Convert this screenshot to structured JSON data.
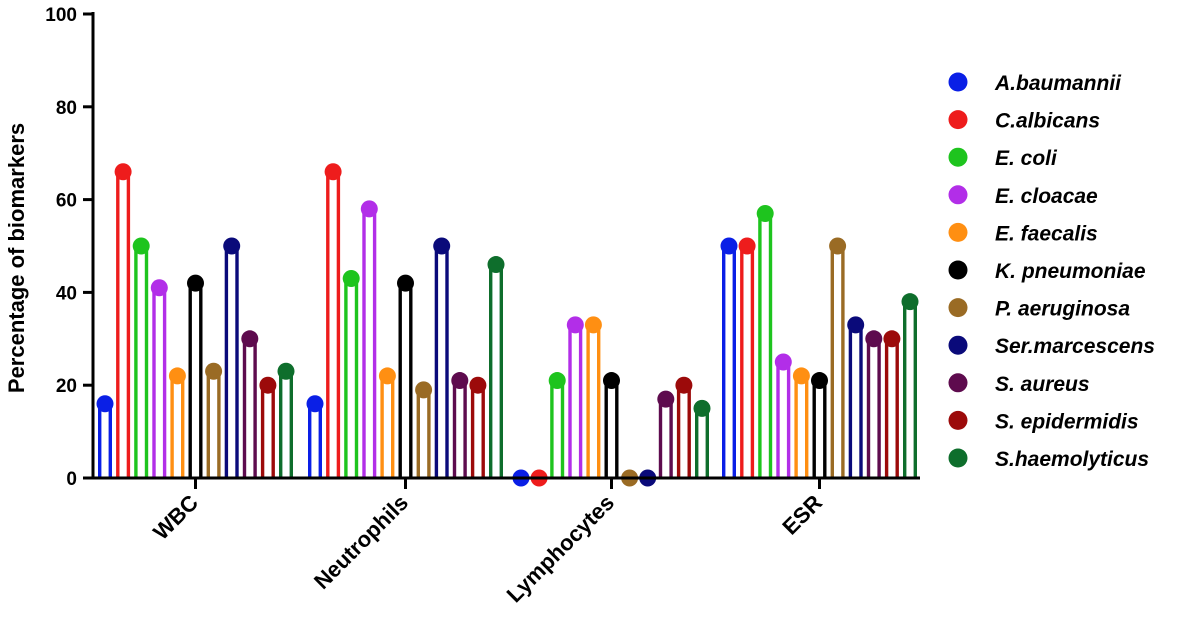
{
  "chart_data": {
    "type": "bar",
    "ylabel": "Percentage of biomarkers",
    "ylim": [
      0,
      100
    ],
    "yticks": [
      0,
      20,
      40,
      60,
      80,
      100
    ],
    "grid": false,
    "legend_position": "right",
    "categories": [
      "WBC",
      "Neutrophils",
      "Lymphocytes",
      "ESR"
    ],
    "series": [
      {
        "name": "A.baumannii",
        "color": "#0a1fe6",
        "values": [
          16,
          16,
          0,
          50
        ]
      },
      {
        "name": "C.albicans",
        "color": "#ee1c1c",
        "values": [
          66,
          66,
          0,
          50
        ]
      },
      {
        "name": "E. coli",
        "color": "#1ec41e",
        "values": [
          50,
          43,
          21,
          57
        ]
      },
      {
        "name": "E. cloacae",
        "color": "#b22ee8",
        "values": [
          41,
          58,
          33,
          25
        ]
      },
      {
        "name": "E. faecalis",
        "color": "#ff8f12",
        "values": [
          22,
          22,
          33,
          22
        ]
      },
      {
        "name": "K. pneumoniae",
        "color": "#000000",
        "values": [
          42,
          42,
          21,
          21
        ]
      },
      {
        "name": "P. aeruginosa",
        "color": "#9a6b24",
        "values": [
          23,
          19,
          0,
          50
        ]
      },
      {
        "name": "Ser.marcescens",
        "color": "#0a0a7a",
        "values": [
          50,
          50,
          0,
          33
        ]
      },
      {
        "name": "S. aureus",
        "color": "#5e0b4e",
        "values": [
          30,
          21,
          17,
          30
        ]
      },
      {
        "name": "S. epidermidis",
        "color": "#9c0a0a",
        "values": [
          20,
          20,
          20,
          30
        ]
      },
      {
        "name": "S.haemolyticus",
        "color": "#0e6e2c",
        "values": [
          23,
          46,
          15,
          38
        ]
      }
    ]
  }
}
